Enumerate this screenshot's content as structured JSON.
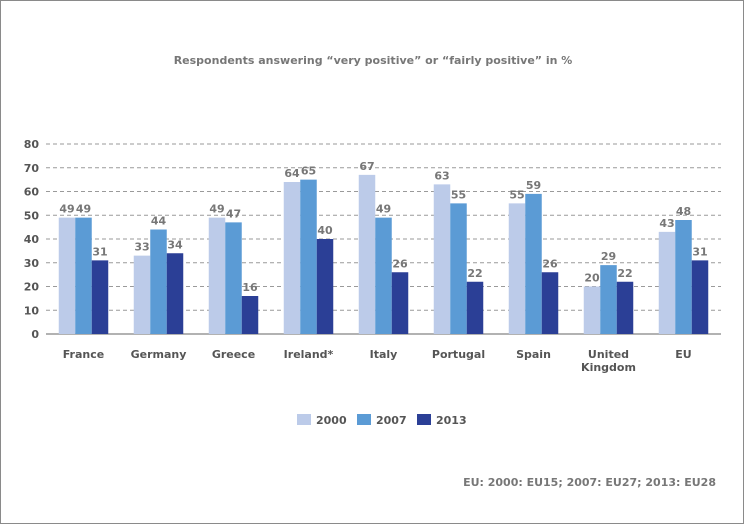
{
  "chart_data": {
    "type": "bar",
    "title": "Respondents answering “very positive” or “fairly positive” in %",
    "footnote": "EU: 2000: EU15; 2007: EU27; 2013: EU28",
    "categories": [
      "France",
      "Germany",
      "Greece",
      "Ireland*",
      "Italy",
      "Portugal",
      "Spain",
      "United Kingdom",
      "EU"
    ],
    "series": [
      {
        "name": "2000",
        "color": "#bccbe9",
        "values": [
          49,
          33,
          49,
          64,
          67,
          63,
          55,
          20,
          43
        ]
      },
      {
        "name": "2007",
        "color": "#5b9bd5",
        "values": [
          49,
          44,
          47,
          65,
          49,
          55,
          59,
          29,
          48
        ]
      },
      {
        "name": "2013",
        "color": "#2b3f96",
        "values": [
          31,
          34,
          16,
          40,
          26,
          22,
          26,
          22,
          31
        ]
      }
    ],
    "yticks": [
      0,
      10,
      20,
      30,
      40,
      50,
      60,
      70,
      80
    ],
    "ylim": [
      0,
      80
    ],
    "grid": true,
    "legend_position": "bottom-center"
  }
}
